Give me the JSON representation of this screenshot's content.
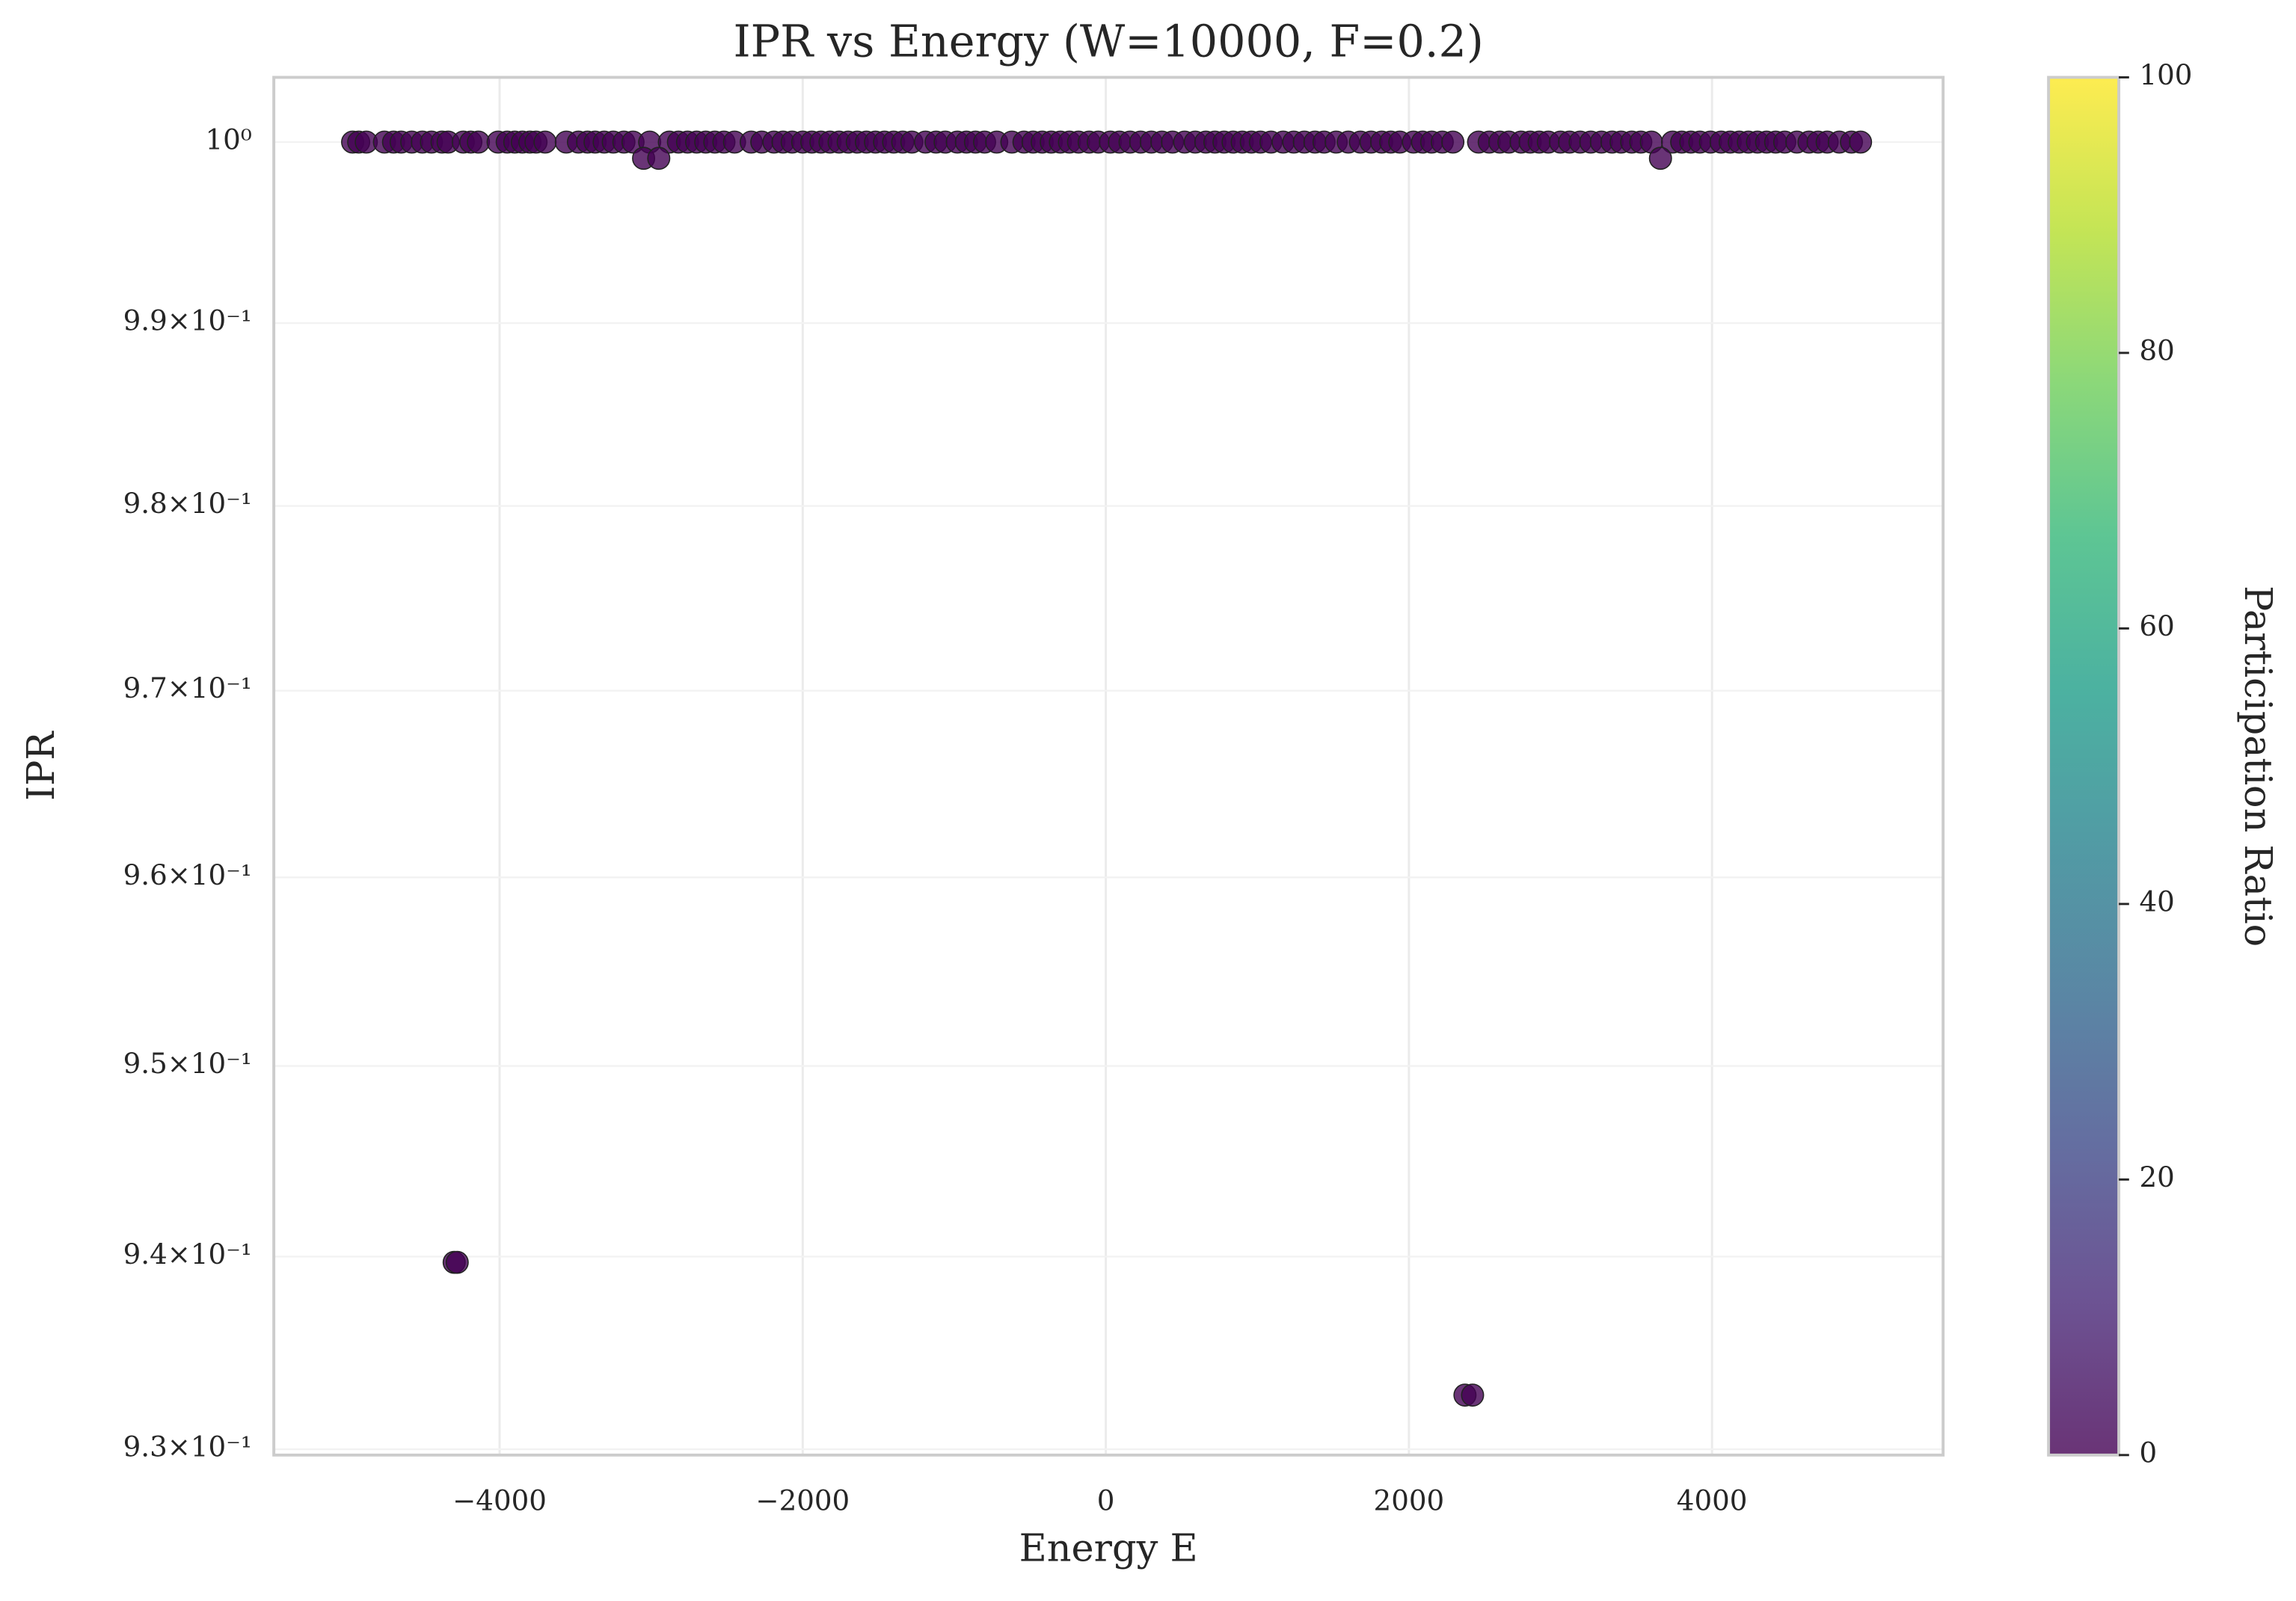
{
  "chart_data": {
    "type": "scatter",
    "title": "IPR vs Energy (W=10000, F=0.2)",
    "xlabel": "Energy E",
    "ylabel": "IPR",
    "yscale": "log",
    "grid": true,
    "color": "#440154",
    "xlim": [
      -5490,
      5525
    ],
    "xticks": [
      {
        "value": -4000,
        "label": "−4000"
      },
      {
        "value": -2000,
        "label": "−2000"
      },
      0,
      2000,
      4000
    ],
    "ylim": [
      0.9297,
      1.0036
    ],
    "yticks": [
      {
        "value": 0.93,
        "label": "9.3×10⁻¹"
      },
      {
        "value": 0.94,
        "label": "9.4×10⁻¹"
      },
      {
        "value": 0.95,
        "label": "9.5×10⁻¹"
      },
      {
        "value": 0.96,
        "label": "9.6×10⁻¹"
      },
      {
        "value": 0.97,
        "label": "9.7×10⁻¹"
      },
      {
        "value": 0.98,
        "label": "9.8×10⁻¹"
      },
      {
        "value": 0.99,
        "label": "9.9×10⁻¹"
      },
      {
        "value": 1,
        "label": "10⁰"
      }
    ],
    "x": [
      -4970,
      -4930,
      -4880,
      -4760,
      -4700,
      -4650,
      -4580,
      -4510,
      -4450,
      -4380,
      -4340,
      -4240,
      -4190,
      -4140,
      -4010,
      -3950,
      -3900,
      -3850,
      -3800,
      -3760,
      -3700,
      -3560,
      -3480,
      -3420,
      -3370,
      -3310,
      -3250,
      -3180,
      -3120,
      -3010,
      -2880,
      -2820,
      -2760,
      -2700,
      -2640,
      -2580,
      -2520,
      -2450,
      -2340,
      -2270,
      -2190,
      -2130,
      -2070,
      -2000,
      -1940,
      -1880,
      -1820,
      -1760,
      -1700,
      -1640,
      -1580,
      -1520,
      -1460,
      -1400,
      -1340,
      -1280,
      -1190,
      -1120,
      -1060,
      -980,
      -920,
      -860,
      -800,
      -720,
      -620,
      -540,
      -480,
      -420,
      -360,
      -300,
      -240,
      -180,
      -110,
      -50,
      30,
      90,
      160,
      230,
      300,
      370,
      440,
      520,
      590,
      660,
      720,
      780,
      840,
      900,
      960,
      1020,
      1090,
      1170,
      1240,
      1310,
      1380,
      1440,
      1520,
      1600,
      1680,
      1750,
      1820,
      1880,
      1940,
      2030,
      2090,
      2150,
      2220,
      2290,
      2460,
      2530,
      2600,
      2660,
      2740,
      2800,
      2860,
      2920,
      3000,
      3060,
      3130,
      3200,
      3270,
      3340,
      3400,
      3470,
      3530,
      3600,
      3740,
      3800,
      3860,
      3920,
      3990,
      4060,
      4120,
      4180,
      4240,
      4300,
      4360,
      4420,
      4480,
      4560,
      4640,
      4700,
      4760,
      4840,
      4920,
      4980,
      -3050,
      -2950,
      3660,
      -4300,
      -4280,
      2370,
      2420
    ],
    "values": [
      1,
      1,
      1,
      1,
      1,
      1,
      1,
      1,
      1,
      1,
      1,
      1,
      1,
      1,
      1,
      1,
      1,
      1,
      1,
      1,
      1,
      1,
      1,
      1,
      1,
      1,
      1,
      1,
      1,
      1,
      1,
      1,
      1,
      1,
      1,
      1,
      1,
      1,
      1,
      1,
      1,
      1,
      1,
      1,
      1,
      1,
      1,
      1,
      1,
      1,
      1,
      1,
      1,
      1,
      1,
      1,
      1,
      1,
      1,
      1,
      1,
      1,
      1,
      1,
      1,
      1,
      1,
      1,
      1,
      1,
      1,
      1,
      1,
      1,
      1,
      1,
      1,
      1,
      1,
      1,
      1,
      1,
      1,
      1,
      1,
      1,
      1,
      1,
      1,
      1,
      1,
      1,
      1,
      1,
      1,
      1,
      1,
      1,
      1,
      1,
      1,
      1,
      1,
      1,
      1,
      1,
      1,
      1,
      1,
      1,
      1,
      1,
      1,
      1,
      1,
      1,
      1,
      1,
      1,
      1,
      1,
      1,
      1,
      1,
      1,
      1,
      1,
      1,
      1,
      1,
      1,
      1,
      1,
      1,
      1,
      1,
      1,
      1,
      1,
      1,
      1,
      1,
      1,
      1,
      1,
      1,
      0.9991,
      0.9991,
      0.9991,
      0.9397,
      0.9397,
      0.9328,
      0.9328
    ],
    "colorbar": {
      "label": "Participation Ratio",
      "colormap": "viridis",
      "lim": [
        0,
        100
      ],
      "ticks": [
        0,
        20,
        40,
        60,
        80,
        100
      ]
    }
  }
}
